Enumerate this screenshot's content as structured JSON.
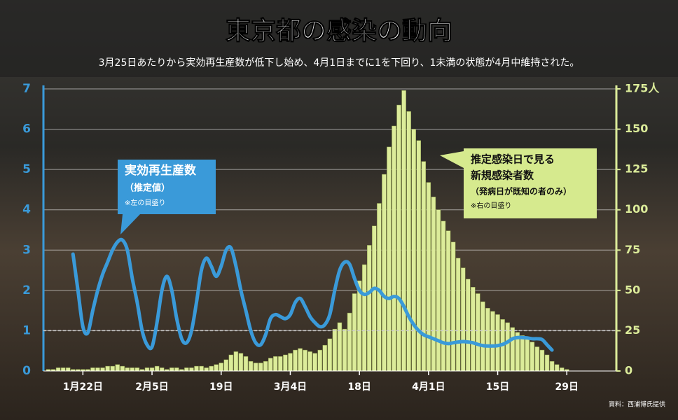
{
  "chart_data": {
    "type": "bar",
    "title": "東京都の感染の動向",
    "subtitle": "3月25日あたりから実効再生産数が低下し始め、4月1日までに1を下回り、1未満の状態が4月中維持された。",
    "source": "資料：西浦博氏提供",
    "annotations": [
      {
        "lines": [
          "実効再生産数",
          "（推定値）",
          "※左の目盛り"
        ],
        "color": "#3a9ad9"
      },
      {
        "lines": [
          "推定感染日で見る",
          "新規感染者数",
          "（発病日が既知の者のみ）",
          "※右の目盛り"
        ],
        "color": "#d6ea8e"
      }
    ],
    "categories": [
      null,
      null,
      null,
      null,
      null,
      null,
      null,
      "1月22日",
      null,
      null,
      null,
      null,
      null,
      null,
      null,
      null,
      null,
      null,
      null,
      null,
      null,
      "2月5日",
      null,
      null,
      null,
      null,
      null,
      null,
      null,
      null,
      null,
      null,
      null,
      null,
      null,
      "19日",
      null,
      null,
      null,
      null,
      null,
      null,
      null,
      null,
      null,
      null,
      null,
      null,
      null,
      "3月4日",
      null,
      null,
      null,
      null,
      null,
      null,
      null,
      null,
      null,
      null,
      null,
      null,
      null,
      "18日",
      null,
      null,
      null,
      null,
      null,
      null,
      null,
      null,
      null,
      null,
      null,
      null,
      null,
      "4月1日",
      null,
      null,
      null,
      null,
      null,
      null,
      null,
      null,
      null,
      null,
      null,
      null,
      null,
      "15日",
      null,
      null,
      null,
      null,
      null,
      null,
      null,
      null,
      null,
      null,
      null,
      null,
      null,
      "29日",
      null
    ],
    "series": [
      {
        "name": "新規感染者数",
        "type": "bar",
        "axis": "y2",
        "color": "#dcec9a",
        "values": [
          1,
          1,
          2,
          2,
          2,
          1,
          1,
          1,
          1,
          2,
          2,
          2,
          3,
          3,
          4,
          3,
          2,
          2,
          2,
          1,
          2,
          2,
          3,
          2,
          1,
          2,
          2,
          1,
          2,
          2,
          3,
          3,
          2,
          3,
          4,
          5,
          7,
          10,
          12,
          11,
          9,
          6,
          5,
          5,
          6,
          8,
          9,
          9,
          10,
          11,
          13,
          14,
          13,
          12,
          11,
          13,
          16,
          20,
          26,
          30,
          26,
          36,
          48,
          56,
          66,
          78,
          90,
          104,
          122,
          139,
          152,
          165,
          174,
          161,
          150,
          143,
          130,
          117,
          108,
          100,
          93,
          87,
          80,
          70,
          64,
          57,
          52,
          48,
          43,
          39,
          37,
          35,
          32,
          30,
          27,
          24,
          22,
          20,
          18,
          15,
          13,
          10,
          6,
          4,
          2,
          1,
          0
        ]
      },
      {
        "name": "実効再生産数",
        "type": "line",
        "axis": "y",
        "color": "#3a9ad9",
        "values": [
          null,
          null,
          null,
          null,
          null,
          2.9,
          2.0,
          1.1,
          0.95,
          1.5,
          2.0,
          2.4,
          2.7,
          3.0,
          3.2,
          3.25,
          3.0,
          2.3,
          1.7,
          1.0,
          0.65,
          0.6,
          1.2,
          2.0,
          2.35,
          2.0,
          1.3,
          0.8,
          0.7,
          1.0,
          1.7,
          2.5,
          2.8,
          2.6,
          2.35,
          2.6,
          3.0,
          3.05,
          2.6,
          2.0,
          1.5,
          1.0,
          0.7,
          0.65,
          0.9,
          1.3,
          1.4,
          1.35,
          1.3,
          1.4,
          1.7,
          1.8,
          1.6,
          1.35,
          1.2,
          1.1,
          1.15,
          1.4,
          2.0,
          2.5,
          2.7,
          2.65,
          2.3,
          2.0,
          1.9,
          1.95,
          2.05,
          2.0,
          1.85,
          1.8,
          1.85,
          1.8,
          1.6,
          1.35,
          1.15,
          1.0,
          0.9,
          0.85,
          0.8,
          0.75,
          0.7,
          0.68,
          0.7,
          0.72,
          0.73,
          0.72,
          0.7,
          0.66,
          0.63,
          0.62,
          0.62,
          0.63,
          0.66,
          0.72,
          0.8,
          0.83,
          0.83,
          0.82,
          0.8,
          0.8,
          0.78,
          0.65,
          0.52,
          null,
          null,
          null,
          null
        ]
      }
    ],
    "ylim": [
      0,
      7
    ],
    "yticks": [
      0,
      1,
      2,
      3,
      4,
      5,
      6,
      7
    ],
    "y2lim": [
      0,
      175
    ],
    "y2ticks": [
      0,
      25,
      50,
      75,
      100,
      125,
      150,
      {
        "value": 175,
        "label": "175人"
      }
    ],
    "hline": 1,
    "grid": true
  }
}
